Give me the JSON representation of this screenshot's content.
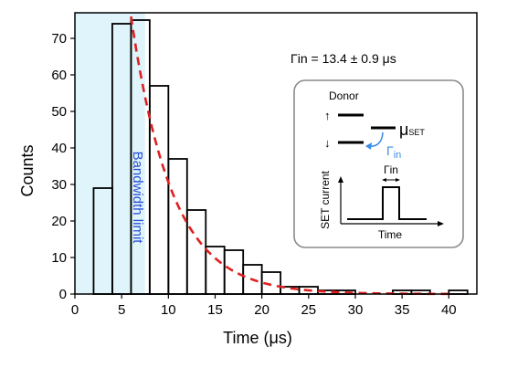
{
  "chart_data": {
    "type": "bar",
    "subtype": "histogram",
    "xlabel": "Time (μs)",
    "ylabel": "Counts",
    "xlim": [
      0,
      43
    ],
    "ylim": [
      0,
      77
    ],
    "xticks": [
      "0",
      "5",
      "10",
      "15",
      "20",
      "25",
      "30",
      "35",
      "40"
    ],
    "xtick_values": [
      0,
      5,
      10,
      15,
      20,
      25,
      30,
      35,
      40
    ],
    "yticks": [
      "0",
      "10",
      "20",
      "30",
      "40",
      "50",
      "60",
      "70"
    ],
    "ytick_values": [
      0,
      10,
      20,
      30,
      40,
      50,
      60,
      70
    ],
    "bin_width": 2,
    "bins": [
      {
        "x0": 2,
        "count": 29
      },
      {
        "x0": 4,
        "count": 74
      },
      {
        "x0": 6,
        "count": 75
      },
      {
        "x0": 8,
        "count": 57
      },
      {
        "x0": 10,
        "count": 37
      },
      {
        "x0": 12,
        "count": 23
      },
      {
        "x0": 14,
        "count": 13
      },
      {
        "x0": 16,
        "count": 12
      },
      {
        "x0": 18,
        "count": 8
      },
      {
        "x0": 20,
        "count": 6
      },
      {
        "x0": 22,
        "count": 2
      },
      {
        "x0": 24,
        "count": 2
      },
      {
        "x0": 26,
        "count": 1
      },
      {
        "x0": 28,
        "count": 1
      },
      {
        "x0": 30,
        "count": 0
      },
      {
        "x0": 32,
        "count": 0
      },
      {
        "x0": 34,
        "count": 1
      },
      {
        "x0": 36,
        "count": 1
      },
      {
        "x0": 38,
        "count": 0
      },
      {
        "x0": 40,
        "count": 1
      }
    ],
    "fit": {
      "style": "dashed",
      "color": "#e02020",
      "x_start": 6,
      "x_end": 40,
      "amplitude_at_start": 76,
      "tau": 4.4,
      "label": "Γin = 13.4 ± 0.9 μs"
    },
    "shaded_region": {
      "x_start": 0,
      "x_end": 7.5,
      "color": "#dff4fb",
      "label": "Bandwidth limit",
      "label_color": "#2a4fd6"
    },
    "inset": {
      "donor_label": "Donor",
      "spin_up": "↑",
      "spin_down": "↓",
      "mu_label": "μ",
      "mu_sub": "SET",
      "gamma_label": "Γ",
      "gamma_sub": "in",
      "gamma_color": "#3a8ee6",
      "pulse_label": "Γin",
      "ylabel": "SET current",
      "xlabel": "Time"
    }
  }
}
